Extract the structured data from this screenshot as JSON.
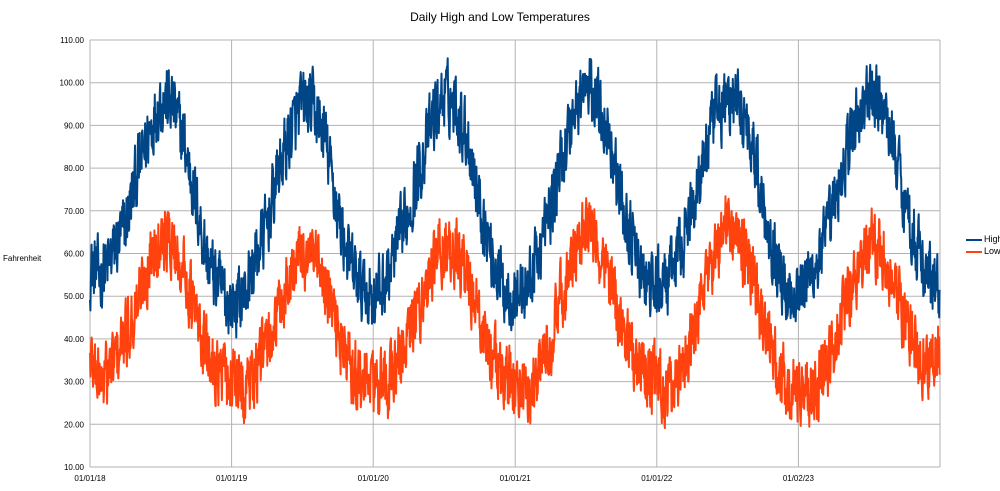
{
  "chart_data": {
    "type": "line",
    "title": "Daily High and Low Temperatures",
    "ylabel": "Fahrenheit",
    "xlabel": "",
    "ylim": [
      10,
      110
    ],
    "y_ticks": [
      "10.00",
      "20.00",
      "30.00",
      "40.00",
      "50.00",
      "60.00",
      "70.00",
      "80.00",
      "90.00",
      "100.00",
      "110.00"
    ],
    "x_tick_labels": [
      "01/01/18",
      "01/01/19",
      "01/01/20",
      "01/01/21",
      "01/01/22",
      "01/02/23"
    ],
    "x_range": [
      "2018-01-01",
      "2024-01-01"
    ],
    "grid": true,
    "legend_position": "right",
    "series": [
      {
        "name": "High",
        "color": "#004586",
        "x": [
          "2018-01-01",
          "2018-02-01",
          "2018-03-01",
          "2018-04-01",
          "2018-05-01",
          "2018-06-01",
          "2018-07-01",
          "2018-08-01",
          "2018-09-01",
          "2018-10-01",
          "2018-11-01",
          "2018-12-01",
          "2019-01-01",
          "2019-02-01",
          "2019-03-01",
          "2019-04-01",
          "2019-05-01",
          "2019-06-01",
          "2019-07-01",
          "2019-08-01",
          "2019-09-01",
          "2019-10-01",
          "2019-11-01",
          "2019-12-01",
          "2020-01-01",
          "2020-02-01",
          "2020-03-01",
          "2020-04-01",
          "2020-05-01",
          "2020-06-01",
          "2020-07-01",
          "2020-08-01",
          "2020-09-01",
          "2020-10-01",
          "2020-11-01",
          "2020-12-01",
          "2021-01-01",
          "2021-02-01",
          "2021-03-01",
          "2021-04-01",
          "2021-05-01",
          "2021-06-01",
          "2021-07-01",
          "2021-08-01",
          "2021-09-01",
          "2021-10-01",
          "2021-11-01",
          "2021-12-01",
          "2022-01-01",
          "2022-02-01",
          "2022-03-01",
          "2022-04-01",
          "2022-05-01",
          "2022-06-01",
          "2022-07-01",
          "2022-08-01",
          "2022-09-01",
          "2022-10-01",
          "2022-11-01",
          "2022-12-01",
          "2023-01-01",
          "2023-02-01",
          "2023-03-01",
          "2023-04-01",
          "2023-05-01",
          "2023-06-01",
          "2023-07-01",
          "2023-08-01",
          "2023-09-01",
          "2023-10-01",
          "2023-11-01",
          "2023-12-01",
          "2023-12-31"
        ],
        "values": [
          56,
          55,
          60,
          66,
          78,
          88,
          96,
          95,
          86,
          72,
          58,
          52,
          48,
          50,
          58,
          66,
          79,
          88,
          95,
          94,
          86,
          70,
          58,
          52,
          50,
          53,
          61,
          70,
          80,
          91,
          97,
          95,
          87,
          72,
          60,
          52,
          50,
          52,
          60,
          70,
          82,
          93,
          99,
          96,
          88,
          72,
          62,
          53,
          52,
          54,
          61,
          70,
          82,
          92,
          96,
          95,
          88,
          72,
          60,
          51,
          52,
          55,
          60,
          70,
          82,
          92,
          97,
          95,
          87,
          73,
          62,
          54,
          52
        ]
      },
      {
        "name": "Low",
        "color": "#ff420e",
        "x": [
          "2018-01-01",
          "2018-02-01",
          "2018-03-01",
          "2018-04-01",
          "2018-05-01",
          "2018-06-01",
          "2018-07-01",
          "2018-08-01",
          "2018-09-01",
          "2018-10-01",
          "2018-11-01",
          "2018-12-01",
          "2019-01-01",
          "2019-02-01",
          "2019-03-01",
          "2019-04-01",
          "2019-05-01",
          "2019-06-01",
          "2019-07-01",
          "2019-08-01",
          "2019-09-01",
          "2019-10-01",
          "2019-11-01",
          "2019-12-01",
          "2020-01-01",
          "2020-02-01",
          "2020-03-01",
          "2020-04-01",
          "2020-05-01",
          "2020-06-01",
          "2020-07-01",
          "2020-08-01",
          "2020-09-01",
          "2020-10-01",
          "2020-11-01",
          "2020-12-01",
          "2021-01-01",
          "2021-02-01",
          "2021-03-01",
          "2021-04-01",
          "2021-05-01",
          "2021-06-01",
          "2021-07-01",
          "2021-08-01",
          "2021-09-01",
          "2021-10-01",
          "2021-11-01",
          "2021-12-01",
          "2022-01-01",
          "2022-02-01",
          "2022-03-01",
          "2022-04-01",
          "2022-05-01",
          "2022-06-01",
          "2022-07-01",
          "2022-08-01",
          "2022-09-01",
          "2022-10-01",
          "2022-11-01",
          "2022-12-01",
          "2023-01-01",
          "2023-02-01",
          "2023-03-01",
          "2023-04-01",
          "2023-05-01",
          "2023-06-01",
          "2023-07-01",
          "2023-08-01",
          "2023-09-01",
          "2023-10-01",
          "2023-11-01",
          "2023-12-01",
          "2023-12-31"
        ],
        "values": [
          36,
          30,
          34,
          40,
          48,
          57,
          66,
          62,
          56,
          45,
          36,
          32,
          30,
          28,
          32,
          38,
          46,
          55,
          60,
          58,
          52,
          42,
          34,
          30,
          30,
          28,
          34,
          40,
          48,
          56,
          62,
          60,
          54,
          44,
          36,
          31,
          30,
          27,
          33,
          40,
          50,
          58,
          66,
          62,
          55,
          44,
          36,
          32,
          30,
          28,
          32,
          40,
          50,
          60,
          66,
          62,
          56,
          44,
          35,
          30,
          28,
          26,
          30,
          38,
          48,
          56,
          64,
          60,
          54,
          44,
          36,
          34,
          36
        ]
      }
    ]
  }
}
